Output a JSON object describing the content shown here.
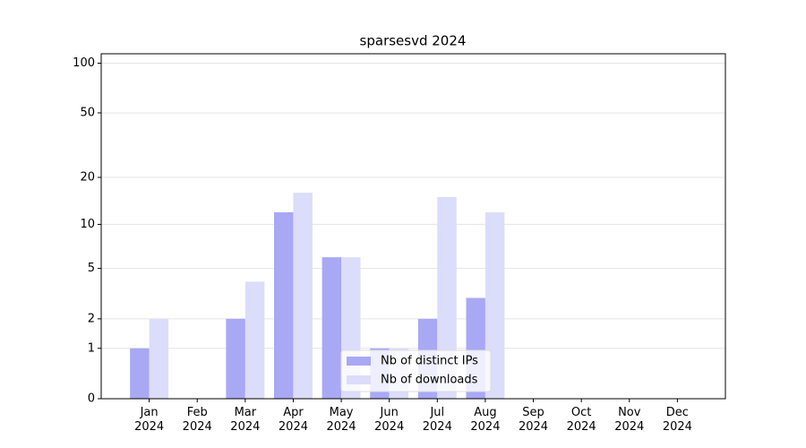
{
  "chart_data": {
    "type": "bar",
    "title": "sparsesvd 2024",
    "categories": [
      "Jan\n2024",
      "Feb\n2024",
      "Mar\n2024",
      "Apr\n2024",
      "May\n2024",
      "Jun\n2024",
      "Jul\n2024",
      "Aug\n2024",
      "Sep\n2024",
      "Oct\n2024",
      "Nov\n2024",
      "Dec\n2024"
    ],
    "series": [
      {
        "name": "Nb of distinct IPs",
        "color": "#a8a8f5",
        "values": [
          1,
          0,
          2,
          12,
          6,
          1,
          2,
          3,
          0,
          0,
          0,
          0
        ]
      },
      {
        "name": "Nb of downloads",
        "color": "#dcdcfb",
        "values": [
          2,
          0,
          4,
          16,
          6,
          1,
          15,
          12,
          0,
          0,
          0,
          0
        ]
      }
    ],
    "yscale": "log1p",
    "ylim": [
      0,
      114
    ],
    "yticks": [
      0,
      1,
      2,
      5,
      10,
      20,
      50,
      100
    ],
    "grid": true,
    "legend": "lower center"
  }
}
